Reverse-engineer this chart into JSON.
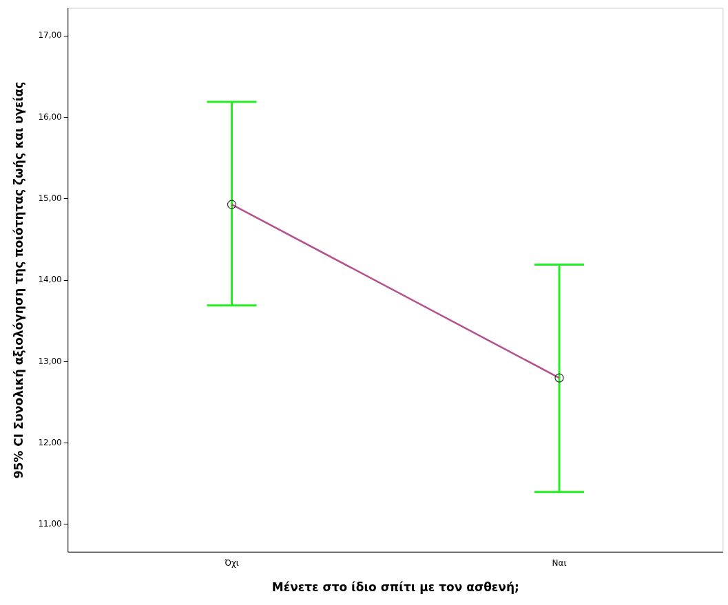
{
  "chart_data": {
    "type": "line",
    "xlabel": "Μένετε στο ίδιο σπίτι με τον ασθενή;",
    "ylabel": "95% CI Συνολική αξιολόγηση της ποιότητας ζωής και υγείας",
    "categories": [
      "Όχι",
      "Ναι"
    ],
    "series": [
      {
        "color": "#b5508e",
        "values": [
          14.93,
          12.8
        ],
        "errors": [
          [
            13.69,
            16.19
          ],
          [
            11.4,
            14.19
          ]
        ]
      }
    ],
    "marker": "circle",
    "ylim": [
      10.66,
      17.34
    ],
    "yticks": [
      {
        "value": 11,
        "label": "11,00"
      },
      {
        "value": 12,
        "label": "12,00"
      },
      {
        "value": 13,
        "label": "13,00"
      },
      {
        "value": 14,
        "label": "14,00"
      },
      {
        "value": 15,
        "label": "15,00"
      },
      {
        "value": 16,
        "label": "16,00"
      },
      {
        "value": 17,
        "label": "17,00"
      }
    ],
    "grid": false,
    "legend": false
  }
}
